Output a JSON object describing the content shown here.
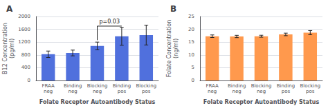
{
  "chart_data": [
    {
      "type": "bar",
      "title": "A",
      "ylabel": "B12 Concentration\n(pg/ml)",
      "xlabel": "Folate Receptor Autoantibody Status",
      "categories": [
        "FRAA\nneg",
        "Binding\nneg",
        "Blocking\nneg",
        "Binding\npos",
        "Blocking\npos"
      ],
      "values": [
        820,
        860,
        1080,
        1380,
        1420
      ],
      "errors": [
        100,
        90,
        120,
        280,
        310
      ],
      "ylim": [
        0,
        2000
      ],
      "yticks": [
        0,
        400,
        800,
        1200,
        1600,
        2000
      ],
      "grid": true,
      "annotations": [
        {
          "text": "p=0.03",
          "from": "Blocking\nneg",
          "to": "Binding\npos"
        }
      ]
    },
    {
      "type": "bar",
      "title": "B",
      "ylabel": "Folate Concentration\n(ng/ml)",
      "xlabel": "Folate Receptor Autoantibody Status",
      "categories": [
        "FRAA\nneg",
        "Binding\nneg",
        "Blocking\nneg",
        "Binding\npos",
        "Blocking\npos"
      ],
      "values": [
        17.3,
        17.2,
        17.3,
        18.0,
        18.7
      ],
      "errors": [
        0.5,
        0.45,
        0.38,
        0.5,
        0.8
      ],
      "ylim": [
        0,
        25
      ],
      "yticks": [
        0,
        5,
        10,
        15,
        20,
        25
      ],
      "grid": true
    }
  ]
}
